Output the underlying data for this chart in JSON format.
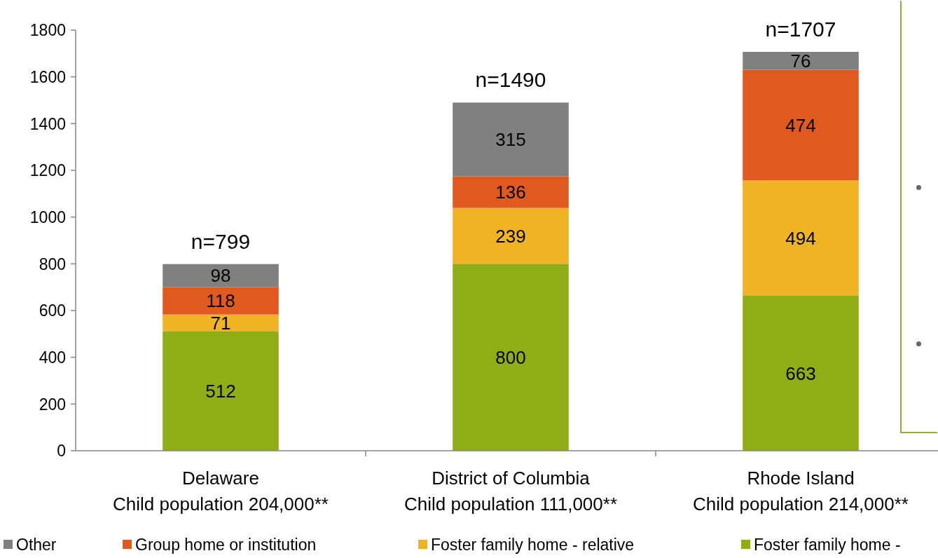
{
  "chart_data": {
    "type": "bar",
    "stacked": true,
    "categories": [
      "Delaware\nChild population 204,000**",
      "District of Columbia\nChild population 111,000**",
      "Rhode Island\nChild population 214,000**"
    ],
    "series": [
      {
        "name": "Foster family home -",
        "color": "#8fad15",
        "values": [
          512,
          800,
          663
        ]
      },
      {
        "name": "Foster family home - relative",
        "color": "#f0b323",
        "values": [
          71,
          239,
          494
        ]
      },
      {
        "name": "Group home or institution",
        "color": "#e05a20",
        "values": [
          118,
          136,
          474
        ]
      },
      {
        "name": "Other",
        "color": "#808080",
        "values": [
          98,
          315,
          76
        ]
      }
    ],
    "totals": [
      "n=799",
      "n=1490",
      "n=1707"
    ],
    "ylim": [
      0,
      1800
    ],
    "yticks": [
      0,
      200,
      400,
      600,
      800,
      1000,
      1200,
      1400,
      1600,
      1800
    ],
    "data_labels": true,
    "legend": "bottom",
    "grid": false
  }
}
